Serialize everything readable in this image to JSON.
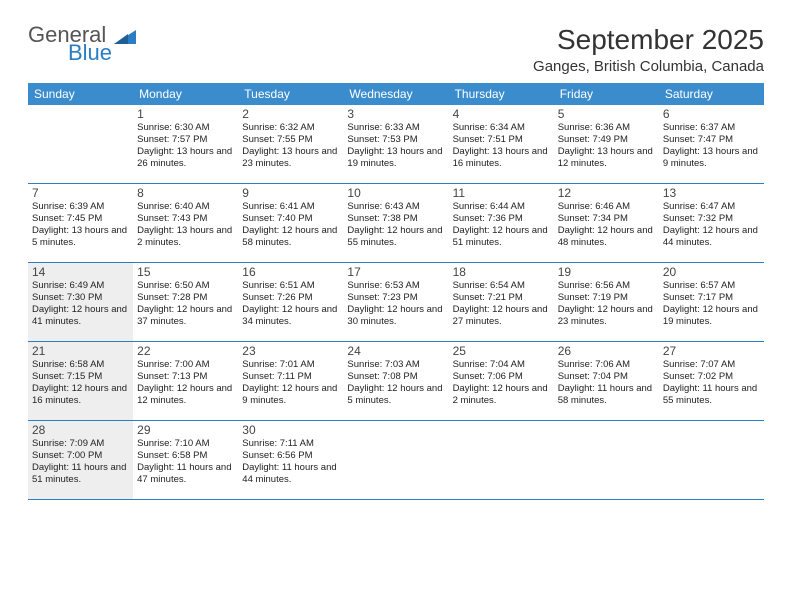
{
  "logo": {
    "general": "General",
    "blue": "Blue"
  },
  "title": "September 2025",
  "location": "Ganges, British Columbia, Canada",
  "colors": {
    "header_bg": "#3b8ccc",
    "border": "#2a7ec4",
    "shade": "#eeeeee",
    "text": "#222222",
    "logo_gray": "#555555",
    "logo_blue": "#2a7ec4"
  },
  "weekdays": [
    "Sunday",
    "Monday",
    "Tuesday",
    "Wednesday",
    "Thursday",
    "Friday",
    "Saturday"
  ],
  "weeks": [
    [
      {
        "day": "",
        "lines": [],
        "shaded": false
      },
      {
        "day": "1",
        "lines": [
          "Sunrise: 6:30 AM",
          "Sunset: 7:57 PM",
          "Daylight: 13 hours and 26 minutes."
        ],
        "shaded": false
      },
      {
        "day": "2",
        "lines": [
          "Sunrise: 6:32 AM",
          "Sunset: 7:55 PM",
          "Daylight: 13 hours and 23 minutes."
        ],
        "shaded": false
      },
      {
        "day": "3",
        "lines": [
          "Sunrise: 6:33 AM",
          "Sunset: 7:53 PM",
          "Daylight: 13 hours and 19 minutes."
        ],
        "shaded": false
      },
      {
        "day": "4",
        "lines": [
          "Sunrise: 6:34 AM",
          "Sunset: 7:51 PM",
          "Daylight: 13 hours and 16 minutes."
        ],
        "shaded": false
      },
      {
        "day": "5",
        "lines": [
          "Sunrise: 6:36 AM",
          "Sunset: 7:49 PM",
          "Daylight: 13 hours and 12 minutes."
        ],
        "shaded": false
      },
      {
        "day": "6",
        "lines": [
          "Sunrise: 6:37 AM",
          "Sunset: 7:47 PM",
          "Daylight: 13 hours and 9 minutes."
        ],
        "shaded": false
      }
    ],
    [
      {
        "day": "7",
        "lines": [
          "Sunrise: 6:39 AM",
          "Sunset: 7:45 PM",
          "Daylight: 13 hours and 5 minutes."
        ],
        "shaded": false
      },
      {
        "day": "8",
        "lines": [
          "Sunrise: 6:40 AM",
          "Sunset: 7:43 PM",
          "Daylight: 13 hours and 2 minutes."
        ],
        "shaded": false
      },
      {
        "day": "9",
        "lines": [
          "Sunrise: 6:41 AM",
          "Sunset: 7:40 PM",
          "Daylight: 12 hours and 58 minutes."
        ],
        "shaded": false
      },
      {
        "day": "10",
        "lines": [
          "Sunrise: 6:43 AM",
          "Sunset: 7:38 PM",
          "Daylight: 12 hours and 55 minutes."
        ],
        "shaded": false
      },
      {
        "day": "11",
        "lines": [
          "Sunrise: 6:44 AM",
          "Sunset: 7:36 PM",
          "Daylight: 12 hours and 51 minutes."
        ],
        "shaded": false
      },
      {
        "day": "12",
        "lines": [
          "Sunrise: 6:46 AM",
          "Sunset: 7:34 PM",
          "Daylight: 12 hours and 48 minutes."
        ],
        "shaded": false
      },
      {
        "day": "13",
        "lines": [
          "Sunrise: 6:47 AM",
          "Sunset: 7:32 PM",
          "Daylight: 12 hours and 44 minutes."
        ],
        "shaded": false
      }
    ],
    [
      {
        "day": "14",
        "lines": [
          "Sunrise: 6:49 AM",
          "Sunset: 7:30 PM",
          "Daylight: 12 hours and 41 minutes."
        ],
        "shaded": true
      },
      {
        "day": "15",
        "lines": [
          "Sunrise: 6:50 AM",
          "Sunset: 7:28 PM",
          "Daylight: 12 hours and 37 minutes."
        ],
        "shaded": false
      },
      {
        "day": "16",
        "lines": [
          "Sunrise: 6:51 AM",
          "Sunset: 7:26 PM",
          "Daylight: 12 hours and 34 minutes."
        ],
        "shaded": false
      },
      {
        "day": "17",
        "lines": [
          "Sunrise: 6:53 AM",
          "Sunset: 7:23 PM",
          "Daylight: 12 hours and 30 minutes."
        ],
        "shaded": false
      },
      {
        "day": "18",
        "lines": [
          "Sunrise: 6:54 AM",
          "Sunset: 7:21 PM",
          "Daylight: 12 hours and 27 minutes."
        ],
        "shaded": false
      },
      {
        "day": "19",
        "lines": [
          "Sunrise: 6:56 AM",
          "Sunset: 7:19 PM",
          "Daylight: 12 hours and 23 minutes."
        ],
        "shaded": false
      },
      {
        "day": "20",
        "lines": [
          "Sunrise: 6:57 AM",
          "Sunset: 7:17 PM",
          "Daylight: 12 hours and 19 minutes."
        ],
        "shaded": false
      }
    ],
    [
      {
        "day": "21",
        "lines": [
          "Sunrise: 6:58 AM",
          "Sunset: 7:15 PM",
          "Daylight: 12 hours and 16 minutes."
        ],
        "shaded": true
      },
      {
        "day": "22",
        "lines": [
          "Sunrise: 7:00 AM",
          "Sunset: 7:13 PM",
          "Daylight: 12 hours and 12 minutes."
        ],
        "shaded": false
      },
      {
        "day": "23",
        "lines": [
          "Sunrise: 7:01 AM",
          "Sunset: 7:11 PM",
          "Daylight: 12 hours and 9 minutes."
        ],
        "shaded": false
      },
      {
        "day": "24",
        "lines": [
          "Sunrise: 7:03 AM",
          "Sunset: 7:08 PM",
          "Daylight: 12 hours and 5 minutes."
        ],
        "shaded": false
      },
      {
        "day": "25",
        "lines": [
          "Sunrise: 7:04 AM",
          "Sunset: 7:06 PM",
          "Daylight: 12 hours and 2 minutes."
        ],
        "shaded": false
      },
      {
        "day": "26",
        "lines": [
          "Sunrise: 7:06 AM",
          "Sunset: 7:04 PM",
          "Daylight: 11 hours and 58 minutes."
        ],
        "shaded": false
      },
      {
        "day": "27",
        "lines": [
          "Sunrise: 7:07 AM",
          "Sunset: 7:02 PM",
          "Daylight: 11 hours and 55 minutes."
        ],
        "shaded": false
      }
    ],
    [
      {
        "day": "28",
        "lines": [
          "Sunrise: 7:09 AM",
          "Sunset: 7:00 PM",
          "Daylight: 11 hours and 51 minutes."
        ],
        "shaded": true
      },
      {
        "day": "29",
        "lines": [
          "Sunrise: 7:10 AM",
          "Sunset: 6:58 PM",
          "Daylight: 11 hours and 47 minutes."
        ],
        "shaded": false
      },
      {
        "day": "30",
        "lines": [
          "Sunrise: 7:11 AM",
          "Sunset: 6:56 PM",
          "Daylight: 11 hours and 44 minutes."
        ],
        "shaded": false
      },
      {
        "day": "",
        "lines": [],
        "shaded": false
      },
      {
        "day": "",
        "lines": [],
        "shaded": false
      },
      {
        "day": "",
        "lines": [],
        "shaded": false
      },
      {
        "day": "",
        "lines": [],
        "shaded": false
      }
    ]
  ]
}
